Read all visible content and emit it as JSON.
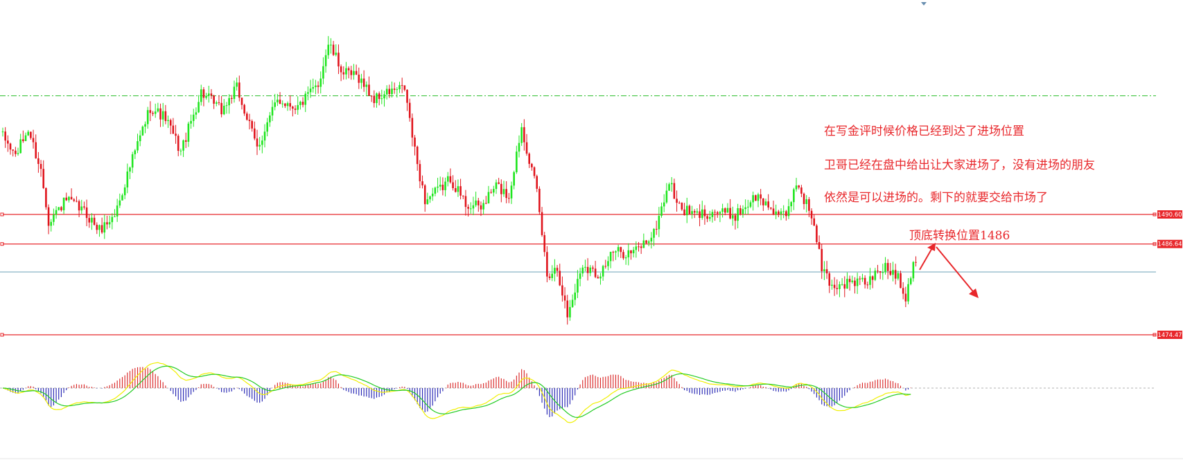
{
  "colors": {
    "background": "#ffffff",
    "bull_candle": "#1ee51e",
    "bear_candle": "#e0141c",
    "level_line": "#e8272b",
    "current_line": "#6aa0b8",
    "ma_line": "#2fbf2f",
    "annotation": "#e8272b",
    "macd_pos": "#d81e1e",
    "macd_neg": "#1b1bb0",
    "signal_yellow": "#f0f000",
    "signal_green": "#22cc22",
    "zero_line": "#b0b0b0"
  },
  "annotations": {
    "line1": "在写金评时候价格已经到达了进场位置",
    "line2": "卫哥已经在盘中给出让大家进场了，没有进场的朋友",
    "line3": "依然是可以进场的。剩下的就要交给市场了",
    "pivot_label": "顶底转换位置1486"
  },
  "chart_data": {
    "type": "candlestick",
    "title": "",
    "xlabel": "",
    "ylabel": "",
    "ylim": [
      1472.0,
      1508.4
    ],
    "grid": false,
    "levels": [
      {
        "label": "1490.60",
        "value": 1490.6
      },
      {
        "label": "1486.64",
        "value": 1486.64
      },
      {
        "label": "1474.47",
        "value": 1474.47
      }
    ],
    "current_price_line": 1482.9,
    "dashed_ma_level": 1506.5,
    "anchors": [
      {
        "i": 0,
        "p": 1501.0
      },
      {
        "i": 5,
        "p": 1498.5
      },
      {
        "i": 10,
        "p": 1502.0
      },
      {
        "i": 15,
        "p": 1496.5
      },
      {
        "i": 18,
        "p": 1489.8
      },
      {
        "i": 25,
        "p": 1492.5
      },
      {
        "i": 32,
        "p": 1491.0
      },
      {
        "i": 38,
        "p": 1488.5
      },
      {
        "i": 44,
        "p": 1490.5
      },
      {
        "i": 50,
        "p": 1497.0
      },
      {
        "i": 58,
        "p": 1505.0
      },
      {
        "i": 64,
        "p": 1503.5
      },
      {
        "i": 70,
        "p": 1499.0
      },
      {
        "i": 78,
        "p": 1507.0
      },
      {
        "i": 86,
        "p": 1504.5
      },
      {
        "i": 92,
        "p": 1507.5
      },
      {
        "i": 100,
        "p": 1499.5
      },
      {
        "i": 108,
        "p": 1506.0
      },
      {
        "i": 116,
        "p": 1505.0
      },
      {
        "i": 124,
        "p": 1508.0
      },
      {
        "i": 128,
        "p": 1513.5
      },
      {
        "i": 134,
        "p": 1509.5
      },
      {
        "i": 140,
        "p": 1509.0
      },
      {
        "i": 146,
        "p": 1506.0
      },
      {
        "i": 152,
        "p": 1507.0
      },
      {
        "i": 158,
        "p": 1507.5
      },
      {
        "i": 162,
        "p": 1499.0
      },
      {
        "i": 166,
        "p": 1492.5
      },
      {
        "i": 172,
        "p": 1494.0
      },
      {
        "i": 176,
        "p": 1495.5
      },
      {
        "i": 182,
        "p": 1492.0
      },
      {
        "i": 188,
        "p": 1491.5
      },
      {
        "i": 194,
        "p": 1494.5
      },
      {
        "i": 199,
        "p": 1493.0
      },
      {
        "i": 204,
        "p": 1502.5
      },
      {
        "i": 210,
        "p": 1493.5
      },
      {
        "i": 214,
        "p": 1482.5
      },
      {
        "i": 218,
        "p": 1483.5
      },
      {
        "i": 222,
        "p": 1477.0
      },
      {
        "i": 228,
        "p": 1484.0
      },
      {
        "i": 234,
        "p": 1482.5
      },
      {
        "i": 240,
        "p": 1485.5
      },
      {
        "i": 248,
        "p": 1485.5
      },
      {
        "i": 256,
        "p": 1488.0
      },
      {
        "i": 262,
        "p": 1495.0
      },
      {
        "i": 266,
        "p": 1491.5
      },
      {
        "i": 272,
        "p": 1490.5
      },
      {
        "i": 280,
        "p": 1491.0
      },
      {
        "i": 288,
        "p": 1490.5
      },
      {
        "i": 296,
        "p": 1493.0
      },
      {
        "i": 302,
        "p": 1491.5
      },
      {
        "i": 308,
        "p": 1490.0
      },
      {
        "i": 312,
        "p": 1495.0
      },
      {
        "i": 318,
        "p": 1490.5
      },
      {
        "i": 322,
        "p": 1483.5
      },
      {
        "i": 326,
        "p": 1481.0
      },
      {
        "i": 334,
        "p": 1481.5
      },
      {
        "i": 340,
        "p": 1481.5
      },
      {
        "i": 346,
        "p": 1483.5
      },
      {
        "i": 352,
        "p": 1482.5
      },
      {
        "i": 355,
        "p": 1479.5
      },
      {
        "i": 358,
        "p": 1484.5
      }
    ]
  }
}
